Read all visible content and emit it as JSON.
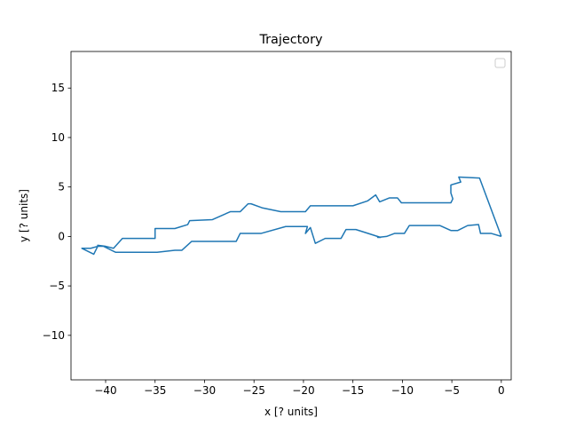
{
  "chart_data": {
    "type": "line",
    "title": "Trajectory",
    "xlabel": "x [? units]",
    "ylabel": "y [? units]",
    "xlim": [
      -43.5,
      1.0
    ],
    "ylim": [
      -14.5,
      18.7
    ],
    "xticks": [
      -40,
      -35,
      -30,
      -25,
      -20,
      -15,
      -10,
      -5,
      0
    ],
    "yticks": [
      -10,
      -5,
      0,
      5,
      10,
      15
    ],
    "xtick_labels": [
      "−40",
      "−35",
      "−30",
      "−25",
      "−20",
      "−15",
      "−10",
      "−5",
      "0"
    ],
    "ytick_labels": [
      "−10",
      "−5",
      "0",
      "5",
      "10",
      "15"
    ],
    "grid": false,
    "legend": "top-right, empty",
    "series": [
      {
        "color": "#1f77b4",
        "x": [
          0.0,
          -2.2,
          -4.3,
          -4.1,
          -5.1,
          -5.1,
          -4.9,
          -5.1,
          -10.1,
          -10.5,
          -11.3,
          -12.3,
          -12.7,
          -13.5,
          -15.0,
          -19.3,
          -19.8,
          -22.3,
          -24.2,
          -25.3,
          -25.6,
          -26.4,
          -27.4,
          -29.2,
          -29.2,
          -31.5,
          -31.7,
          -33.0,
          -35.0,
          -35.0,
          -38.3,
          -39.2,
          -40.0,
          -40.8,
          -40.8,
          -41.2,
          -42.4,
          -41.5,
          -40.8,
          -40.2,
          -39.0,
          -38.3,
          -34.8,
          -33.0,
          -32.3,
          -31.3,
          -26.8,
          -26.4,
          -24.3,
          -21.8,
          -19.6,
          -19.8,
          -19.3,
          -18.8,
          -17.8,
          -16.2,
          -15.7,
          -14.7,
          -12.2,
          -12.5,
          -12.5,
          -11.6,
          -10.8,
          -9.8,
          -9.3,
          -6.2,
          -5.1,
          -4.4,
          -3.4,
          -2.3,
          -2.1,
          -1.0,
          0.0
        ],
        "y": [
          0.0,
          5.9,
          6.0,
          5.5,
          5.2,
          4.4,
          3.8,
          3.4,
          3.4,
          3.9,
          3.9,
          3.5,
          4.2,
          3.6,
          3.1,
          3.1,
          2.5,
          2.5,
          2.9,
          3.3,
          3.3,
          2.5,
          2.5,
          1.7,
          1.7,
          1.6,
          1.2,
          0.8,
          0.8,
          -0.2,
          -0.2,
          -1.2,
          -1.0,
          -0.9,
          -1.0,
          -1.8,
          -1.2,
          -1.2,
          -1.0,
          -1.0,
          -1.6,
          -1.6,
          -1.6,
          -1.4,
          -1.4,
          -0.5,
          -0.5,
          0.3,
          0.3,
          1.0,
          1.0,
          0.3,
          0.9,
          -0.7,
          -0.2,
          -0.2,
          0.7,
          0.7,
          -0.1,
          -0.1,
          -0.1,
          0.0,
          0.3,
          0.3,
          1.1,
          1.1,
          0.6,
          0.6,
          1.1,
          1.2,
          0.3,
          0.3,
          0.0
        ]
      }
    ]
  }
}
